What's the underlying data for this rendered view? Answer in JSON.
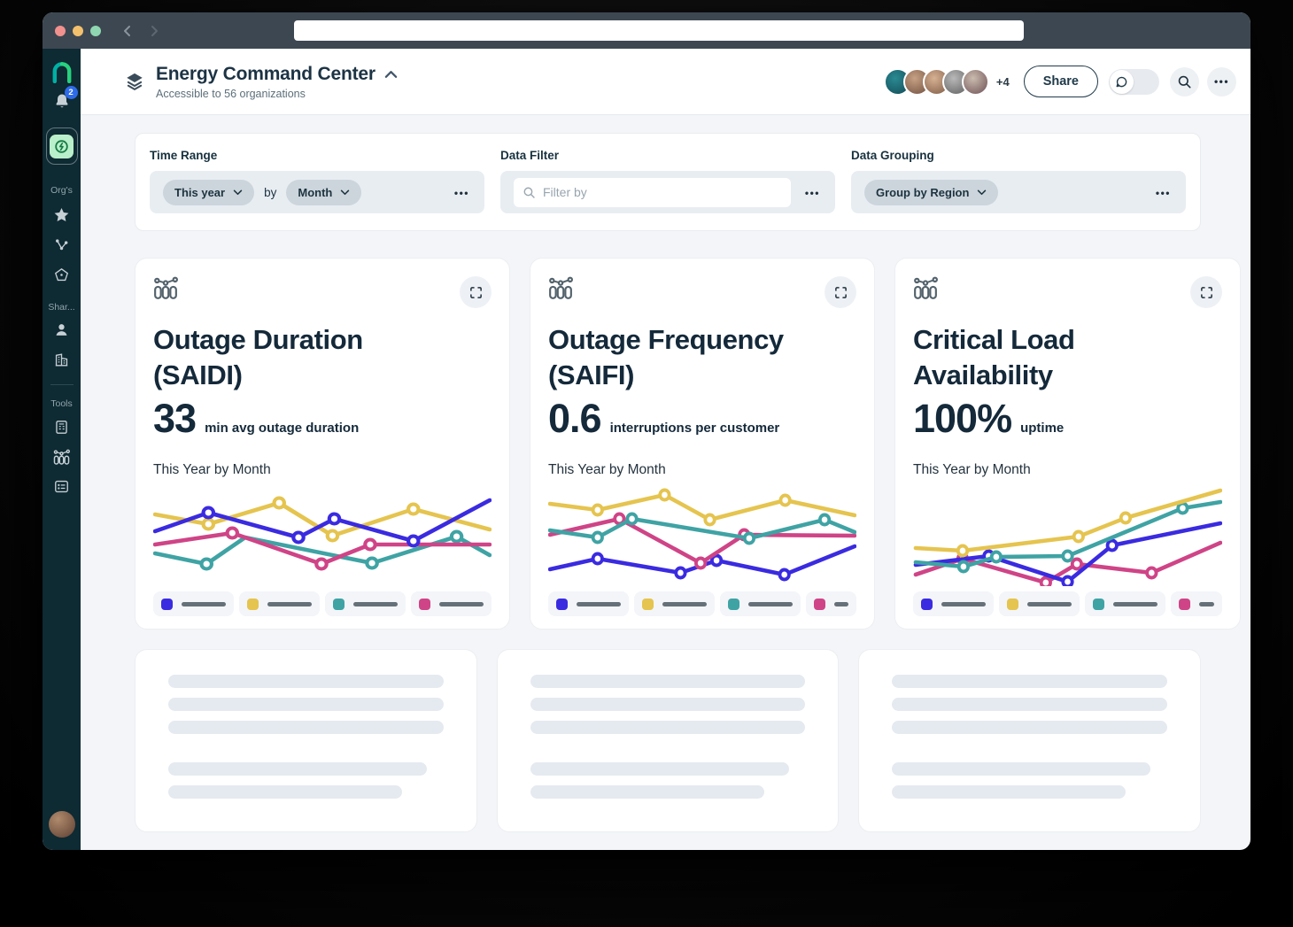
{
  "window": {
    "url": ""
  },
  "icons": {
    "more": "•••"
  },
  "sidebar": {
    "notification_count": "2",
    "section_labels": {
      "orgs": "Org's",
      "shared": "Shar...",
      "tools": "Tools"
    }
  },
  "header": {
    "title": "Energy Command Center",
    "subtitle": "Accessible to 56 organizations",
    "overflow_count": "+4",
    "share_label": "Share"
  },
  "filters": {
    "time_range": {
      "label": "Time Range",
      "preset": "This year",
      "joiner": "by",
      "granularity": "Month"
    },
    "data_filter": {
      "label": "Data Filter",
      "placeholder": "Filter by"
    },
    "data_grouping": {
      "label": "Data Grouping",
      "value": "Group by Region"
    }
  },
  "cards": [
    {
      "title": "Outage Duration (SAIDI)",
      "metric": "33",
      "unit": "min avg outage duration",
      "period": "This Year by Month"
    },
    {
      "title": "Outage Frequency (SAIFI)",
      "metric": "0.6",
      "unit": "interruptions per customer",
      "period": "This Year by Month"
    },
    {
      "title": "Critical Load Availability",
      "metric": "100%",
      "unit": "uptime",
      "period": "This Year by Month"
    }
  ],
  "chart_data": [
    {
      "type": "line",
      "title": "Outage Duration (SAIDI) — This Year by Month",
      "axes_shown": false,
      "note": "Sparkline grouped by region; no axis labels rendered. Points are relative plot coordinates (x 0-368, y 0-112, y inverted).",
      "series": [
        {
          "name": "region-teal",
          "color": "#3fa3a4",
          "points": [
            [
              2,
              75
            ],
            [
              58,
              87
            ],
            [
              100,
              57
            ],
            [
              238,
              86
            ],
            [
              330,
              56
            ],
            [
              366,
              77
            ]
          ],
          "markers": [
            1,
            3,
            4
          ]
        },
        {
          "name": "region-pink",
          "color": "#cf4487",
          "points": [
            [
              2,
              65
            ],
            [
              86,
              52
            ],
            [
              183,
              87
            ],
            [
              236,
              65
            ],
            [
              366,
              65
            ]
          ],
          "markers": [
            1,
            2,
            3
          ]
        },
        {
          "name": "region-yellow",
          "color": "#e5c44f",
          "points": [
            [
              2,
              31
            ],
            [
              60,
              42
            ],
            [
              137,
              18
            ],
            [
              195,
              55
            ],
            [
              283,
              25
            ],
            [
              366,
              48
            ]
          ],
          "markers": [
            1,
            2,
            3,
            4
          ]
        },
        {
          "name": "region-blue",
          "color": "#3a2be0",
          "points": [
            [
              2,
              50
            ],
            [
              60,
              29
            ],
            [
              158,
              57
            ],
            [
              197,
              36
            ],
            [
              283,
              61
            ],
            [
              366,
              15
            ]
          ],
          "markers": [
            1,
            2,
            3,
            4
          ]
        }
      ],
      "legend": [
        {
          "color": "#3a2be0",
          "bar": 50
        },
        {
          "color": "#e5c44f",
          "bar": 50
        },
        {
          "color": "#3fa3a4",
          "bar": 50
        },
        {
          "color": "#cf4487",
          "bar": 50
        }
      ]
    },
    {
      "type": "line",
      "title": "Outage Frequency (SAIFI) — This Year by Month",
      "axes_shown": false,
      "note": "Sparkline grouped by region; no axis labels rendered. Points are relative plot coordinates (x 0-368, y 0-112, y inverted).",
      "series": [
        {
          "name": "region-blue",
          "color": "#3a2be0",
          "points": [
            [
              2,
              93
            ],
            [
              59,
              81
            ],
            [
              158,
              97
            ],
            [
              201,
              83
            ],
            [
              282,
              99
            ],
            [
              366,
              67
            ]
          ],
          "markers": [
            1,
            2,
            3,
            4
          ]
        },
        {
          "name": "region-pink",
          "color": "#cf4487",
          "points": [
            [
              2,
              54
            ],
            [
              85,
              36
            ],
            [
              182,
              86
            ],
            [
              234,
              54
            ],
            [
              366,
              55
            ]
          ],
          "markers": [
            1,
            2,
            3
          ]
        },
        {
          "name": "region-teal",
          "color": "#3fa3a4",
          "points": [
            [
              2,
              49
            ],
            [
              59,
              57
            ],
            [
              100,
              36
            ],
            [
              240,
              58
            ],
            [
              330,
              37
            ],
            [
              366,
              51
            ]
          ],
          "markers": [
            1,
            2,
            3,
            4
          ]
        },
        {
          "name": "region-yellow",
          "color": "#e5c44f",
          "points": [
            [
              2,
              19
            ],
            [
              59,
              26
            ],
            [
              139,
              9
            ],
            [
              193,
              37
            ],
            [
              283,
              15
            ],
            [
              366,
              32
            ]
          ],
          "markers": [
            1,
            2,
            3,
            4
          ]
        }
      ],
      "legend": [
        {
          "color": "#3a2be0",
          "bar": 50
        },
        {
          "color": "#e5c44f",
          "bar": 50
        },
        {
          "color": "#3fa3a4",
          "bar": 50
        },
        {
          "color": "#cf4487",
          "bar": 22,
          "w": 57
        }
      ]
    },
    {
      "type": "line",
      "title": "Critical Load Availability — This Year by Month",
      "axes_shown": false,
      "note": "Sparkline grouped by region; no axis labels rendered. Points are relative plot coordinates (x 0-368, y 0-112, y inverted).",
      "series": [
        {
          "name": "region-pink",
          "color": "#cf4487",
          "points": [
            [
              3,
              99
            ],
            [
              59,
              81
            ],
            [
              158,
              108
            ],
            [
              195,
              87
            ],
            [
              284,
              97
            ],
            [
              366,
              63
            ]
          ],
          "markers": [
            1,
            2,
            3,
            4
          ]
        },
        {
          "name": "region-blue",
          "color": "#3a2be0",
          "points": [
            [
              3,
              88
            ],
            [
              90,
              78
            ],
            [
              184,
              107
            ],
            [
              237,
              66
            ],
            [
              366,
              41
            ]
          ],
          "markers": [
            1,
            2,
            3
          ]
        },
        {
          "name": "region-teal",
          "color": "#3fa3a4",
          "points": [
            [
              3,
              85
            ],
            [
              60,
              90
            ],
            [
              99,
              79
            ],
            [
              184,
              78
            ],
            [
              321,
              24
            ],
            [
              366,
              17
            ]
          ],
          "markers": [
            1,
            2,
            3,
            4
          ]
        },
        {
          "name": "region-yellow",
          "color": "#e5c44f",
          "points": [
            [
              3,
              69
            ],
            [
              59,
              72
            ],
            [
              197,
              56
            ],
            [
              253,
              35
            ],
            [
              366,
              4
            ]
          ],
          "markers": [
            1,
            2,
            3
          ]
        }
      ],
      "legend": [
        {
          "color": "#3a2be0",
          "bar": 50
        },
        {
          "color": "#e5c44f",
          "bar": 50
        },
        {
          "color": "#3fa3a4",
          "bar": 50
        },
        {
          "color": "#cf4487",
          "bar": 30,
          "w": 58
        }
      ]
    }
  ],
  "skeleton_cards": [
    {
      "groups": [
        [
          100,
          100,
          100
        ],
        [
          94,
          85
        ]
      ]
    },
    {
      "groups": [
        [
          100,
          100,
          100
        ],
        [
          94,
          85
        ]
      ]
    },
    {
      "groups": [
        [
          100,
          100,
          100
        ],
        [
          94,
          85
        ]
      ]
    }
  ]
}
